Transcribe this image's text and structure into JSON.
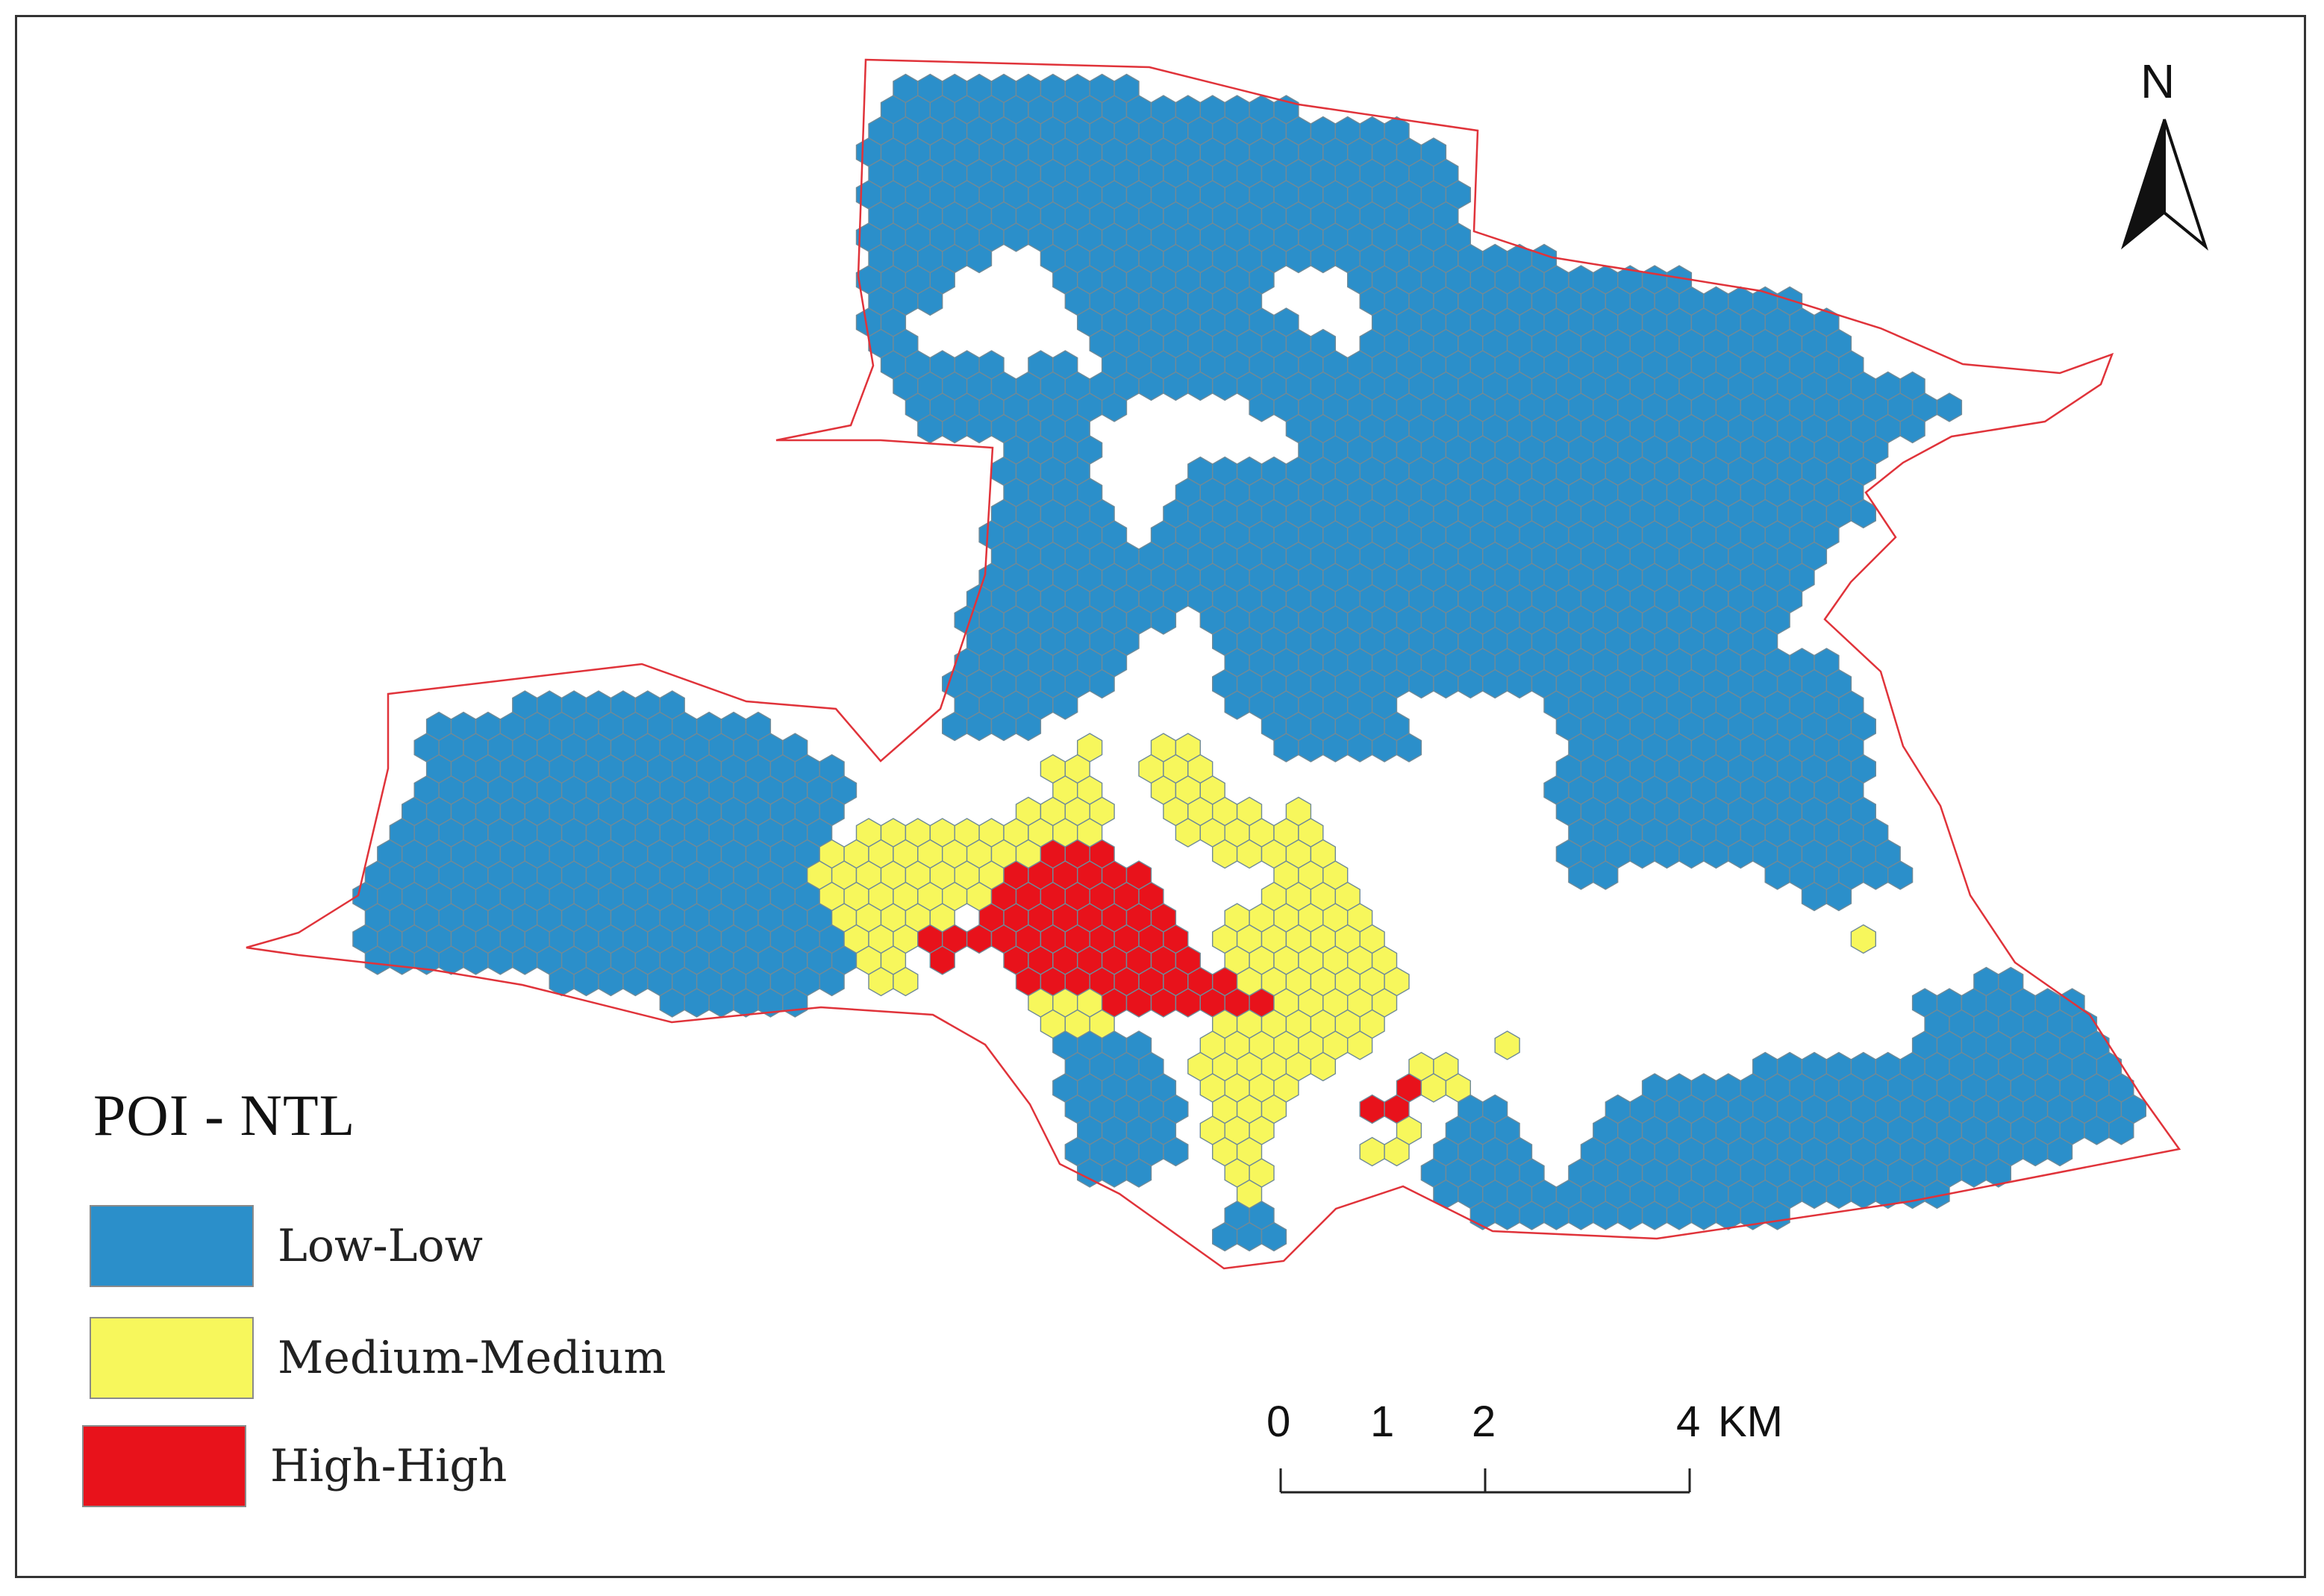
{
  "map": {
    "colors": {
      "low_low": "#2b8fca",
      "medium_medium": "#f7f75c",
      "high_high": "#e8121b",
      "boundary": "#e0333a",
      "hex_stroke": "#6f8a98"
    }
  },
  "legend": {
    "title": "POI - NTL",
    "items": [
      {
        "label": "Low-Low",
        "color": "#2b8fca"
      },
      {
        "label": "Medium-Medium",
        "color": "#f7f75c"
      },
      {
        "label": "High-High",
        "color": "#e8121b"
      }
    ]
  },
  "scale_bar": {
    "ticks": [
      "0",
      "1",
      "2",
      "4"
    ],
    "unit": "KM"
  },
  "north_arrow": {
    "letter": "N",
    "icon": "north-arrow-icon"
  }
}
